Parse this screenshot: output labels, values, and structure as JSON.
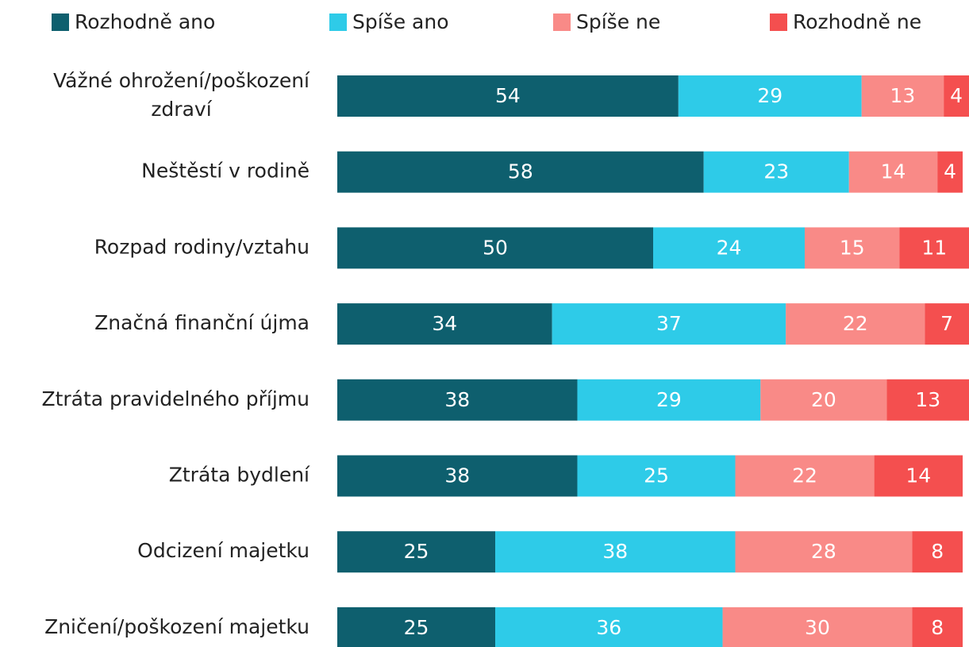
{
  "chart_data": {
    "type": "stacked-barh",
    "categories": [
      "Vážné ohrožení/poškození zdraví",
      "Neštěstí v rodině",
      "Rozpad rodiny/vztahu",
      "Značná finanční újma",
      "Ztráta pravidelného příjmu",
      "Ztráta bydlení",
      "Odcizení majetku",
      "Zničení/poškození majetku"
    ],
    "series": [
      {
        "name": "Rozhodně ano",
        "color": "#0e5f6e",
        "values": [
          54,
          58,
          50,
          34,
          38,
          38,
          25,
          25
        ]
      },
      {
        "name": "Spíše ano",
        "color": "#2ecbe8",
        "values": [
          29,
          23,
          24,
          37,
          29,
          25,
          38,
          36
        ]
      },
      {
        "name": "Spíše ne",
        "color": "#f98a87",
        "values": [
          13,
          14,
          15,
          22,
          20,
          22,
          28,
          30
        ]
      },
      {
        "name": "Rozhodně ne",
        "color": "#f44f4f",
        "values": [
          4,
          4,
          11,
          7,
          13,
          14,
          8,
          8
        ]
      }
    ],
    "xlim": [
      0,
      100
    ],
    "legend": "top"
  }
}
